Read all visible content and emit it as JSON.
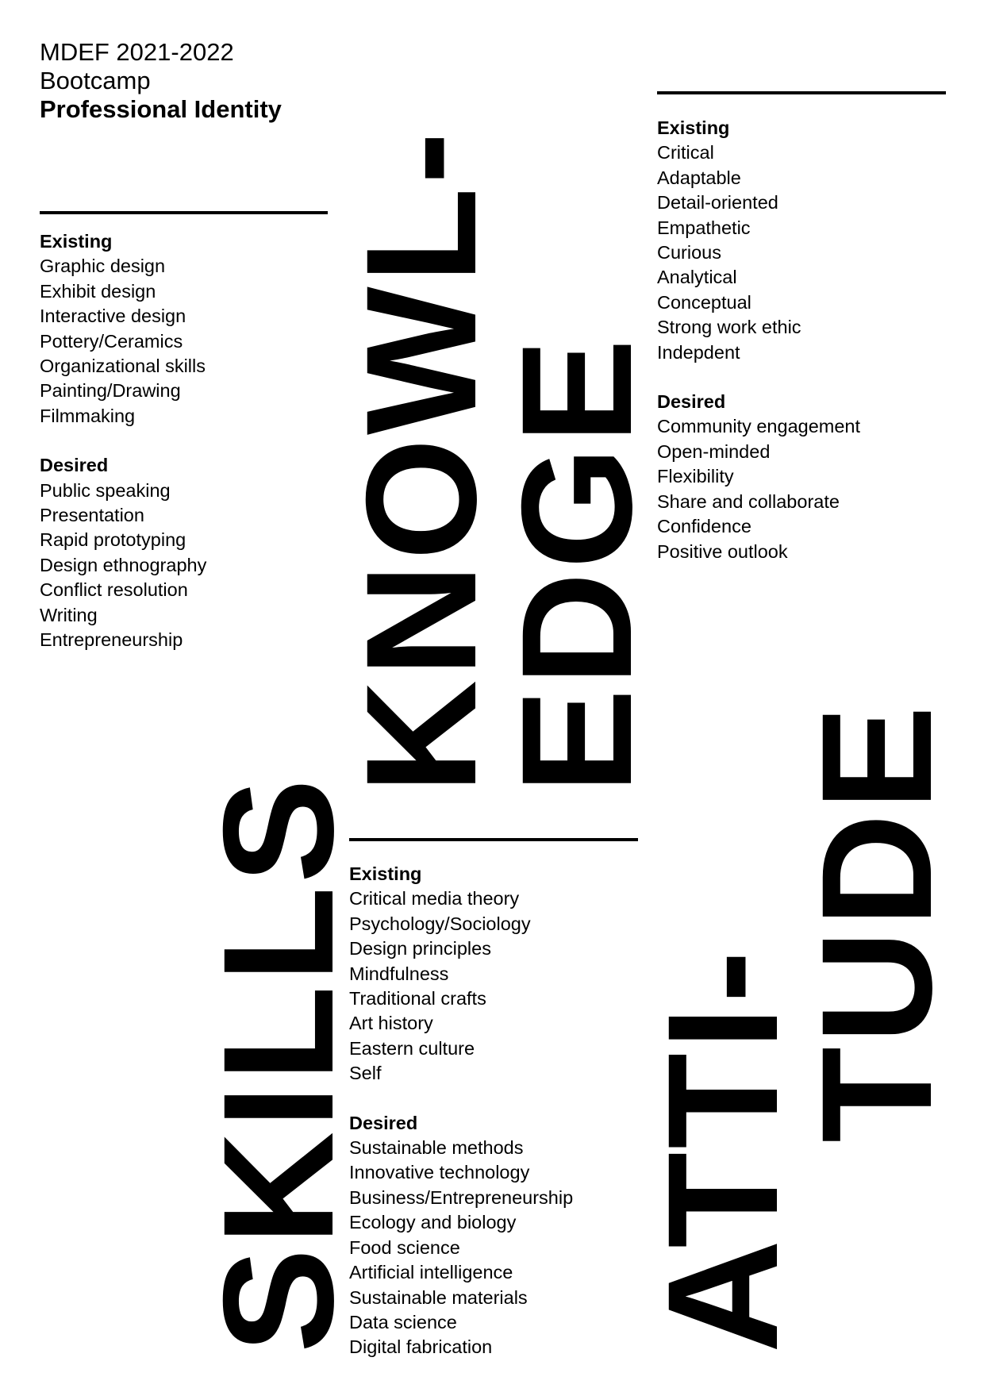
{
  "header": {
    "line1": "MDEF 2021-2022",
    "line2": "Bootcamp",
    "line3": "Professional Identity"
  },
  "skills": {
    "existing_heading": "Existing",
    "existing": [
      "Graphic design",
      "Exhibit design",
      "Interactive design",
      "Pottery/Ceramics",
      "Organizational skills",
      "Painting/Drawing",
      "Filmmaking"
    ],
    "desired_heading": "Desired",
    "desired": [
      "Public speaking",
      "Presentation",
      "Rapid prototyping",
      "Design ethnography",
      "Conflict resolution",
      "Writing",
      "Entrepreneurship"
    ]
  },
  "knowledge": {
    "existing_heading": "Existing",
    "existing": [
      "Critical media theory",
      "Psychology/Sociology",
      "Design principles",
      "Mindfulness",
      "Traditional crafts",
      "Art history",
      "Eastern culture",
      "Self"
    ],
    "desired_heading": "Desired",
    "desired": [
      "Sustainable methods",
      "Innovative technology",
      "Business/Entrepreneurship",
      "Ecology and biology",
      "Food science",
      "Artificial intelligence",
      "Sustainable materials",
      "Data science",
      "Digital fabrication"
    ]
  },
  "attitude": {
    "existing_heading": "Existing",
    "existing": [
      "Critical",
      "Adaptable",
      "Detail-oriented",
      "Empathetic",
      "Curious",
      "Analytical",
      "Conceptual",
      "Strong work ethic",
      "Indepdent"
    ],
    "desired_heading": "Desired",
    "desired": [
      "Community engagement",
      "Open-minded",
      "Flexibility",
      "Share and collaborate",
      "Confidence",
      "Positive outlook"
    ]
  },
  "big_words": {
    "skills": "SKILLS",
    "knowledge_1": "KNOWL-",
    "knowledge_2": "EDGE",
    "attitude_1": "ATTI-",
    "attitude_2": "TUDE"
  }
}
